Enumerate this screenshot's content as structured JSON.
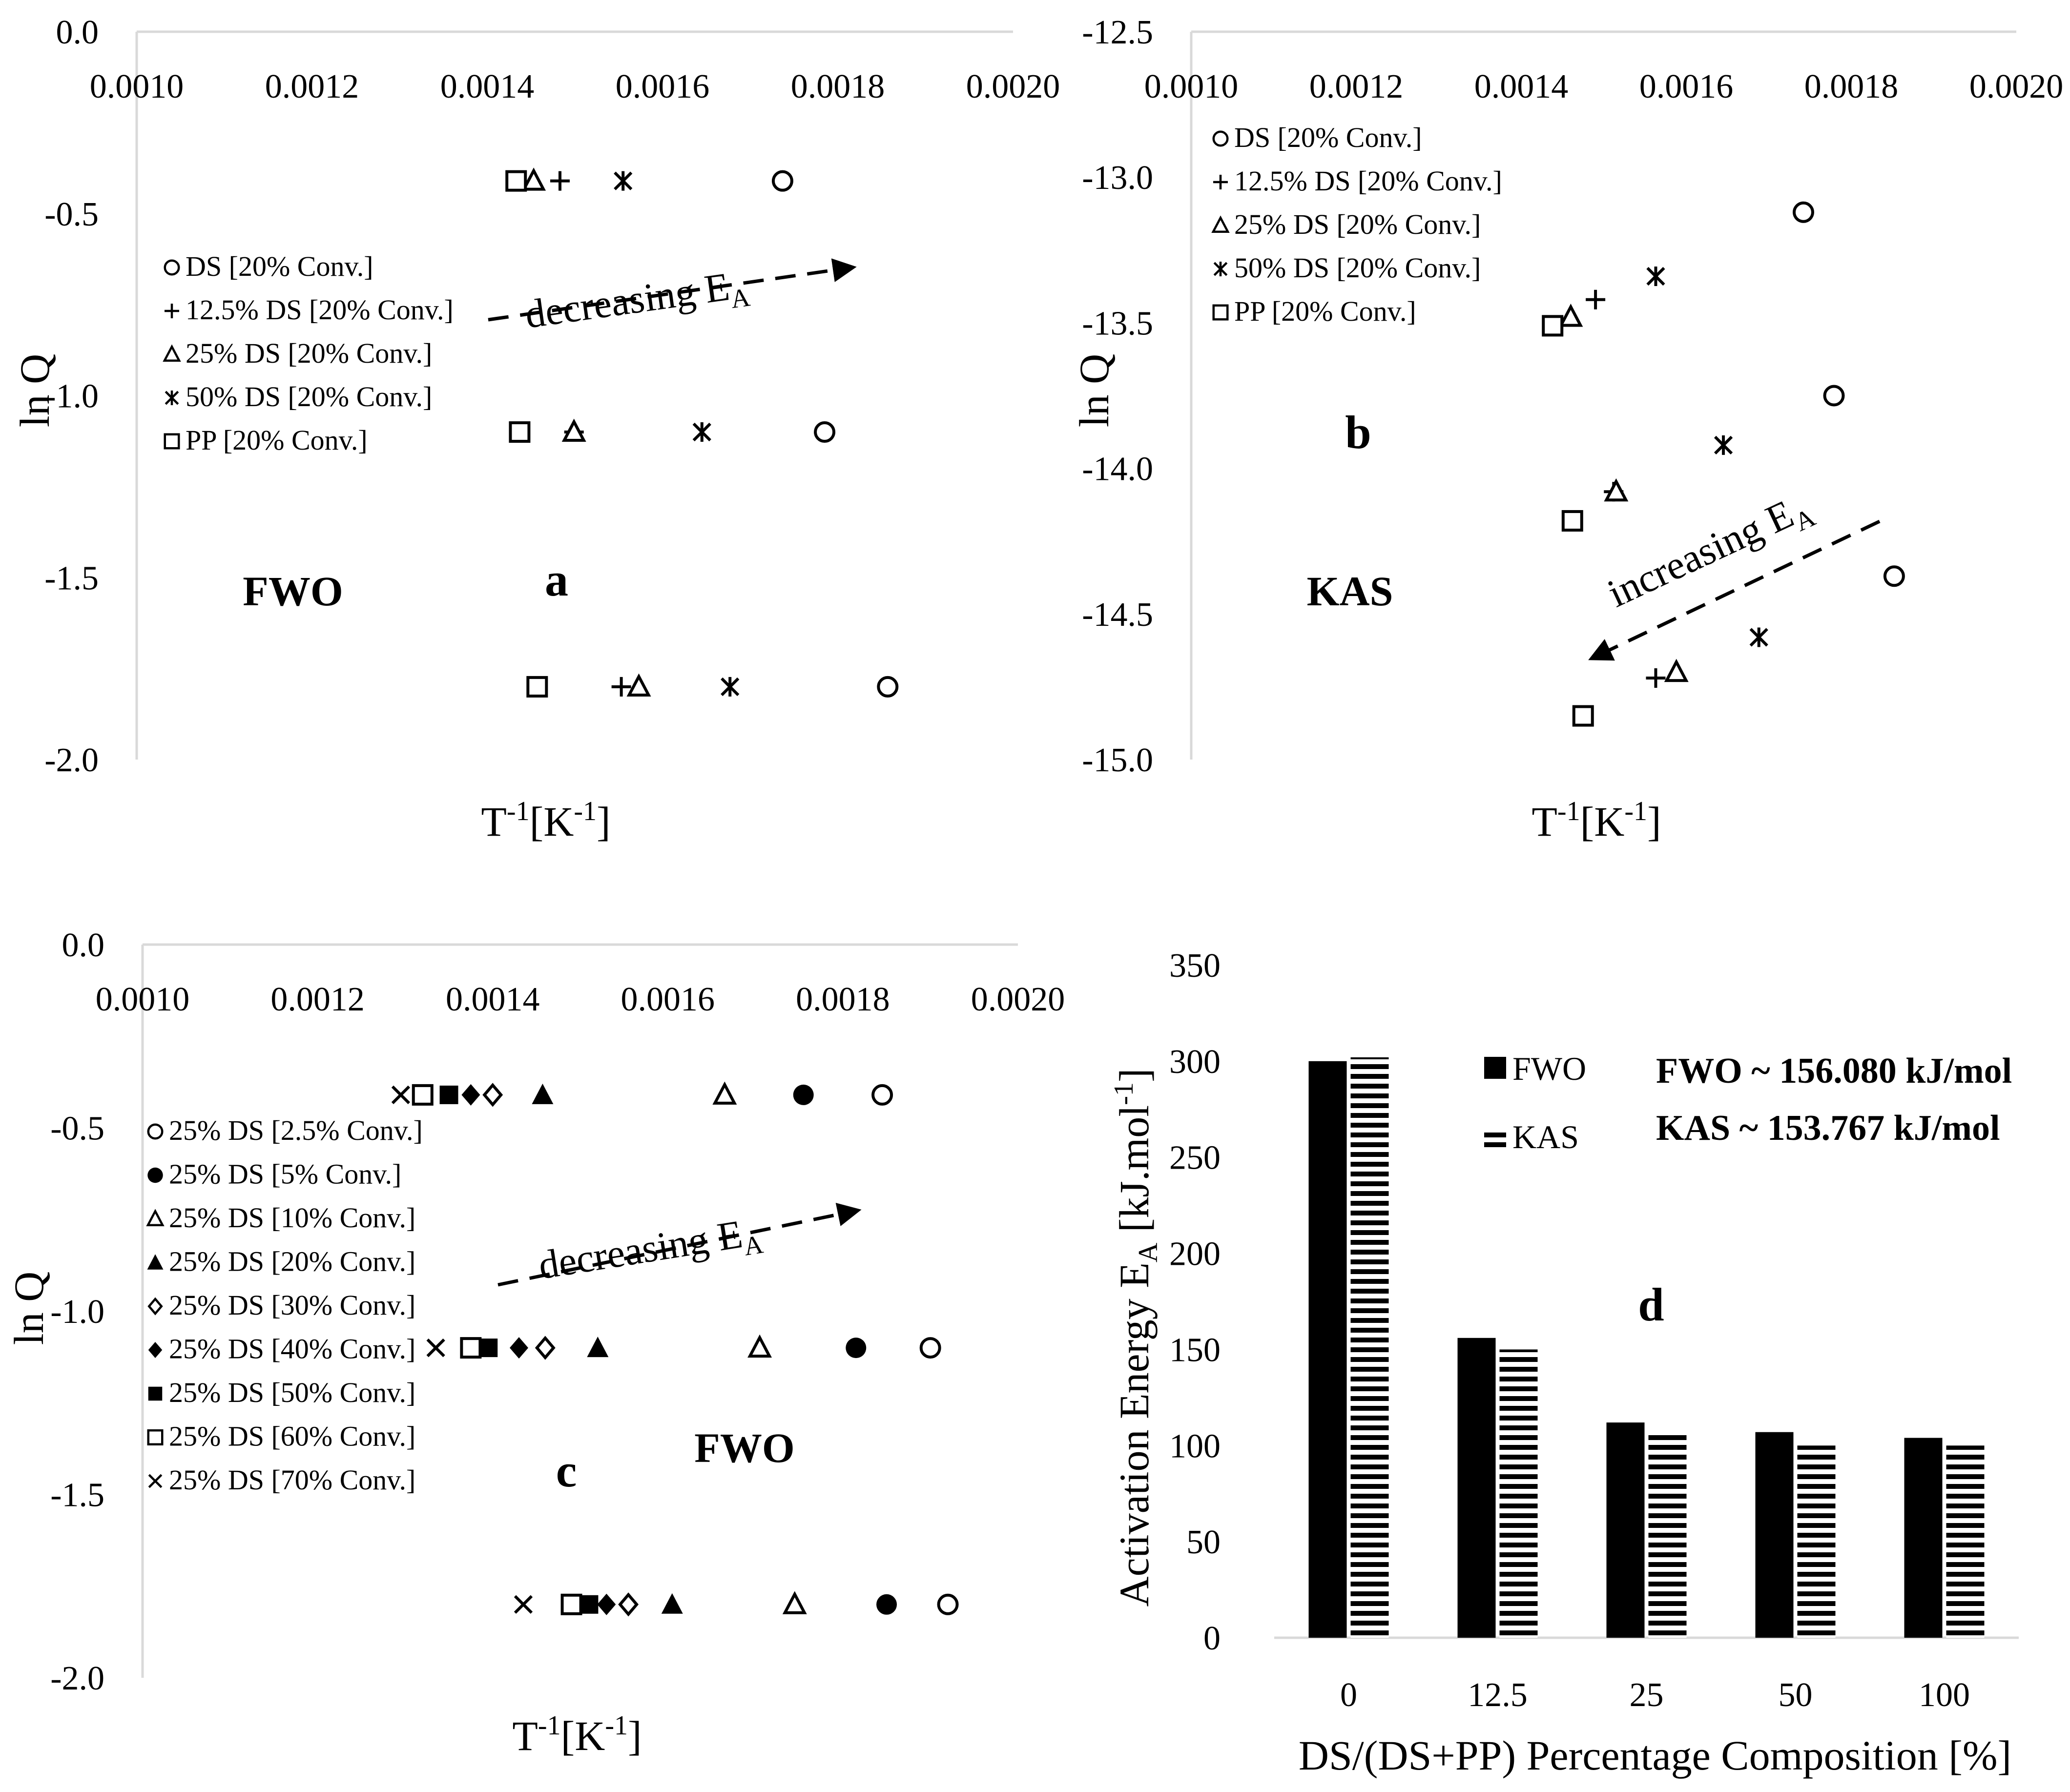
{
  "colors": {
    "ink": "#000000",
    "axis": "#d9d9d9",
    "paper": "#ffffff"
  },
  "chart_data": [
    {
      "id": "a",
      "type": "scatter",
      "panel_label": "a",
      "method_label": "FWO",
      "xlabel": "T-1 [K-1]",
      "xlabel_main": "T",
      "xlabel_exp": "-1",
      "xlabel_unit": "[K",
      "xlabel_unit_exp": "-1",
      "xlabel_close": "]",
      "ylabel": "ln Q",
      "xlim": [
        0.001,
        0.002
      ],
      "ylim": [
        -2.0,
        0.0
      ],
      "xticks": [
        "0.0010",
        "0.0012",
        "0.0014",
        "0.0016",
        "0.0018",
        "0.0020"
      ],
      "yticks": [
        "0.0",
        "-0.5",
        "-1.0",
        "-1.5",
        "-2.0"
      ],
      "annotation": {
        "text": "decreasing E",
        "sub": "A"
      },
      "series": [
        {
          "name": "DS [20% Conv.]",
          "marker": "circle-open",
          "points": [
            [
              0.001737,
              -0.41
            ],
            [
              0.001785,
              -1.1
            ],
            [
              0.001857,
              -1.8
            ]
          ]
        },
        {
          "name": "12.5% DS [20% Conv.]",
          "marker": "plus",
          "points": [
            [
              0.001483,
              -0.41
            ],
            [
              0.001499,
              -1.1
            ],
            [
              0.001553,
              -1.8
            ]
          ]
        },
        {
          "name": "25% DS [20% Conv.]",
          "marker": "triangle-open",
          "points": [
            [
              0.001453,
              -0.41
            ],
            [
              0.001499,
              -1.1
            ],
            [
              0.001573,
              -1.8
            ]
          ]
        },
        {
          "name": "50% DS [20% Conv.]",
          "marker": "star",
          "points": [
            [
              0.001555,
              -0.41
            ],
            [
              0.001645,
              -1.1
            ],
            [
              0.001677,
              -1.8
            ]
          ]
        },
        {
          "name": "PP [20% Conv.]",
          "marker": "square-open",
          "points": [
            [
              0.001433,
              -0.41
            ],
            [
              0.001437,
              -1.1
            ],
            [
              0.001457,
              -1.8
            ]
          ]
        }
      ]
    },
    {
      "id": "b",
      "type": "scatter",
      "panel_label": "b",
      "method_label": "KAS",
      "xlabel": "T-1 [K-1]",
      "xlabel_main": "T",
      "xlabel_exp": "-1",
      "xlabel_unit": "[K",
      "xlabel_unit_exp": "-1",
      "xlabel_close": "]",
      "ylabel": "ln Q",
      "xlim": [
        0.001,
        0.002
      ],
      "ylim": [
        -15.0,
        -12.5
      ],
      "xticks": [
        "0.0010",
        "0.0012",
        "0.0014",
        "0.0016",
        "0.0018",
        "0.0020"
      ],
      "yticks": [
        "-12.5",
        "-13.0",
        "-13.5",
        "-14.0",
        "-14.5",
        "-15.0"
      ],
      "annotation": {
        "text": "increasing E",
        "sub": "A"
      },
      "series": [
        {
          "name": "DS [20% Conv.]",
          "marker": "circle-open",
          "points": [
            [
              0.001742,
              -13.12
            ],
            [
              0.001779,
              -13.75
            ],
            [
              0.001852,
              -14.37
            ]
          ]
        },
        {
          "name": "12.5% DS [20% Conv.]",
          "marker": "plus",
          "points": [
            [
              0.00149,
              -13.42
            ],
            [
              0.001512,
              -14.08
            ],
            [
              0.001563,
              -14.72
            ]
          ]
        },
        {
          "name": "25% DS [20% Conv.]",
          "marker": "triangle-open",
          "points": [
            [
              0.00146,
              -13.48
            ],
            [
              0.001515,
              -14.08
            ],
            [
              0.001588,
              -14.7
            ]
          ]
        },
        {
          "name": "50% DS [20% Conv.]",
          "marker": "star",
          "points": [
            [
              0.001563,
              -13.34
            ],
            [
              0.001645,
              -13.92
            ],
            [
              0.001688,
              -14.58
            ]
          ]
        },
        {
          "name": "PP [20% Conv.]",
          "marker": "square-open",
          "points": [
            [
              0.001438,
              -13.51
            ],
            [
              0.001462,
              -14.18
            ],
            [
              0.001475,
              -14.85
            ]
          ]
        }
      ]
    },
    {
      "id": "c",
      "type": "scatter",
      "panel_label": "c",
      "method_label": "FWO",
      "xlabel": "T-1 [K-1]",
      "xlabel_main": "T",
      "xlabel_exp": "-1",
      "xlabel_unit": "[K",
      "xlabel_unit_exp": "-1",
      "xlabel_close": "]",
      "ylabel": "ln Q",
      "xlim": [
        0.001,
        0.002
      ],
      "ylim": [
        -2.0,
        0.0
      ],
      "xticks": [
        "0.0010",
        "0.0012",
        "0.0014",
        "0.0016",
        "0.0018",
        "0.0020"
      ],
      "yticks": [
        "0.0",
        "-0.5",
        "-1.0",
        "-1.5",
        "-2.0"
      ],
      "annotation": {
        "text": "decreasing E",
        "sub": "A"
      },
      "series": [
        {
          "name": "25% DS [2.5% Conv.]",
          "marker": "circle-open",
          "points": [
            [
              0.001845,
              -0.41
            ],
            [
              0.0019,
              -1.1
            ],
            [
              0.00192,
              -1.8
            ]
          ]
        },
        {
          "name": "25% DS [5% Conv.]",
          "marker": "circle-filled",
          "points": [
            [
              0.001755,
              -0.41
            ],
            [
              0.001815,
              -1.1
            ],
            [
              0.00185,
              -1.8
            ]
          ]
        },
        {
          "name": "25% DS [10% Conv.]",
          "marker": "triangle-open",
          "points": [
            [
              0.001665,
              -0.41
            ],
            [
              0.001705,
              -1.1
            ],
            [
              0.001745,
              -1.8
            ]
          ]
        },
        {
          "name": "25% DS [20% Conv.]",
          "marker": "triangle-filled",
          "points": [
            [
              0.001457,
              -0.41
            ],
            [
              0.00152,
              -1.1
            ],
            [
              0.001605,
              -1.8
            ]
          ]
        },
        {
          "name": "25% DS [30% Conv.]",
          "marker": "diamond-open",
          "points": [
            [
              0.0014,
              -0.41
            ],
            [
              0.00146,
              -1.1
            ],
            [
              0.001555,
              -1.8
            ]
          ]
        },
        {
          "name": "25% DS [40% Conv.]",
          "marker": "diamond-filled",
          "points": [
            [
              0.001375,
              -0.41
            ],
            [
              0.00143,
              -1.1
            ],
            [
              0.00153,
              -1.8
            ]
          ]
        },
        {
          "name": "25% DS [50% Conv.]",
          "marker": "square-filled",
          "points": [
            [
              0.00135,
              -0.41
            ],
            [
              0.001395,
              -1.1
            ],
            [
              0.00151,
              -1.8
            ]
          ]
        },
        {
          "name": "25% DS [60% Conv.]",
          "marker": "square-open",
          "points": [
            [
              0.00132,
              -0.41
            ],
            [
              0.001375,
              -1.1
            ],
            [
              0.00149,
              -1.8
            ]
          ]
        },
        {
          "name": "25% DS [70% Conv.]",
          "marker": "x",
          "points": [
            [
              0.001295,
              -0.41
            ],
            [
              0.001335,
              -1.1
            ],
            [
              0.001435,
              -1.8
            ]
          ]
        }
      ]
    },
    {
      "id": "d",
      "type": "bar",
      "panel_label": "d",
      "xlabel": "DS/(DS+PP) Percentage Composition [%]",
      "ylabel": "Activation Energy EA [kJ.mol-1]",
      "ylabel_main": "Activation Energy E",
      "ylabel_sub": "A",
      "ylabel_unit": " [kJ.mol",
      "ylabel_unit_exp": "-1",
      "ylabel_close": "]",
      "ylim": [
        0,
        350
      ],
      "yticks": [
        "0",
        "50",
        "100",
        "150",
        "200",
        "250",
        "300",
        "350"
      ],
      "categories": [
        "0",
        "12.5",
        "25",
        "50",
        "100"
      ],
      "series": [
        {
          "name": "FWO",
          "style": "solid",
          "values": [
            300,
            156,
            112,
            107,
            104
          ]
        },
        {
          "name": "KAS",
          "style": "striped",
          "values": [
            302,
            150,
            106,
            100,
            100
          ]
        }
      ],
      "annotations": [
        "FWO ~ 156.080 kJ/mol",
        "KAS ~ 153.767 kJ/mol"
      ]
    }
  ]
}
